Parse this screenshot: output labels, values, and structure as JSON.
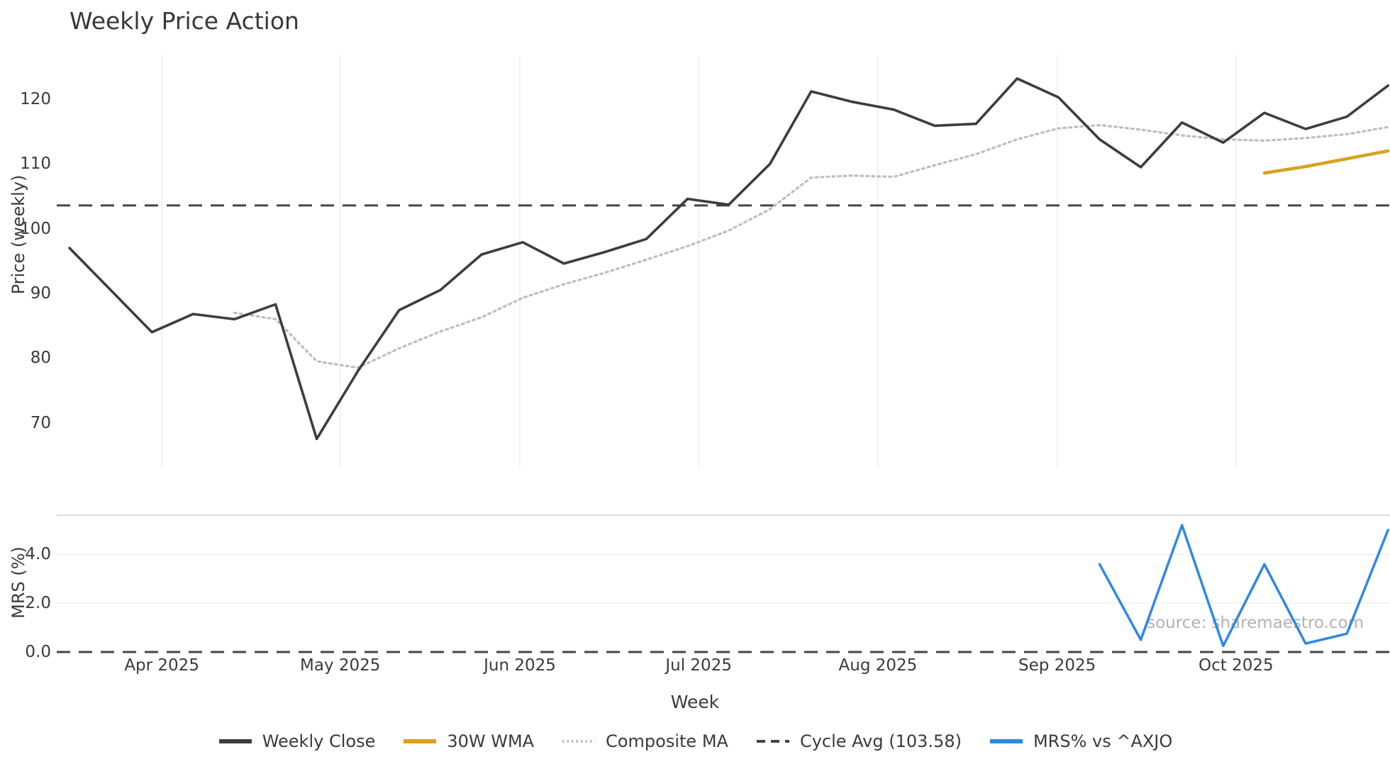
{
  "page": {
    "title": "Weekly Price Action"
  },
  "watermark": "source: sharemaestro.com",
  "colors": {
    "background": "#ffffff",
    "text": "#3a3a3a",
    "price_grid": "#e9e9f0",
    "mrs_grid": "#eaeaea",
    "mrs_top_spine": "#d2d2d2",
    "weekly_close": "#3d3d3d",
    "wma_30w": "#d7a21d",
    "composite_ma": "#bdbdbd",
    "cycle_avg": "#454545",
    "mrs_line": "#2f88e4",
    "watermark": "#b2b2b2"
  },
  "chart_data": {
    "type": "line",
    "title": "Weekly Price Action",
    "xlabel": "Week",
    "x_unit": "weekly points, indices 0-32 (late Mar 2025 to late Oct 2025)",
    "x_tick_labels": [
      "Apr 2025",
      "May 2025",
      "Jun 2025",
      "Jul 2025",
      "Aug 2025",
      "Sep 2025",
      "Oct 2025"
    ],
    "x_tick_weeks": [
      2.24,
      6.57,
      10.93,
      15.27,
      19.62,
      23.97,
      28.31
    ],
    "panels": {
      "price": {
        "ylabel": "Price (weekly)",
        "yticks": [
          70,
          80,
          90,
          100,
          110,
          120
        ],
        "ylim": [
          63,
          127
        ],
        "grid": "vertical"
      },
      "mrs": {
        "ylabel": "MRS (%)",
        "ytick_labels": [
          "0.0",
          "2.0",
          "4.0"
        ],
        "yticks": [
          0,
          2,
          4
        ],
        "ylim": [
          0,
          5.6
        ],
        "grid": "horizontal"
      }
    },
    "series": [
      {
        "name": "Weekly Close",
        "panel": "price",
        "style": "solid",
        "color": "#3d3d3d",
        "width": 3.6,
        "start_week": 0,
        "values": [
          97.0,
          90.5,
          84.0,
          86.8,
          86.0,
          88.3,
          67.5,
          78.0,
          87.4,
          90.5,
          96.0,
          97.9,
          94.6,
          96.4,
          98.4,
          104.6,
          103.7,
          110.0,
          121.2,
          119.6,
          118.4,
          115.9,
          116.2,
          123.2,
          120.3,
          113.8,
          109.5,
          116.4,
          113.3,
          117.9,
          115.4,
          117.3,
          122.1
        ]
      },
      {
        "name": "30W WMA",
        "panel": "price",
        "style": "solid",
        "color": "#d7a21d",
        "width": 4.5,
        "start_week": 29,
        "values": [
          108.6,
          109.6,
          110.8,
          112.0
        ]
      },
      {
        "name": "Composite MA",
        "panel": "price",
        "style": "dotted",
        "color": "#bdbdbd",
        "width": 3.2,
        "start_week": 4,
        "values": [
          87.0,
          86.0,
          79.5,
          78.5,
          81.5,
          84.1,
          86.3,
          89.3,
          91.4,
          93.2,
          95.2,
          97.3,
          99.7,
          103.0,
          107.9,
          108.2,
          108.0,
          109.8,
          111.5,
          113.8,
          115.5,
          116.0,
          115.3,
          114.4,
          113.8,
          113.6,
          114.0,
          114.6,
          115.7
        ]
      },
      {
        "name": "Cycle Avg (103.58)",
        "panel": "price",
        "style": "dashed",
        "color": "#454545",
        "width": 3,
        "hline": 103.58
      },
      {
        "name": "MRS% vs ^AXJO",
        "panel": "mrs",
        "style": "solid",
        "color": "#2f88e4",
        "width": 3.5,
        "start_week": 25,
        "values": [
          3.6,
          0.5,
          5.2,
          0.25,
          3.6,
          0.35,
          0.75,
          5.0
        ]
      },
      {
        "name": "zero-line",
        "panel": "mrs",
        "style": "dashed",
        "color": "#454545",
        "width": 3,
        "hline": 0.0,
        "legend": false
      }
    ],
    "legend_position": "bottom-center"
  }
}
